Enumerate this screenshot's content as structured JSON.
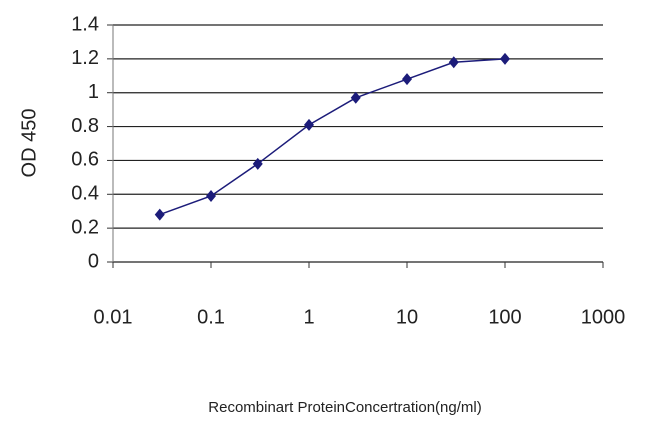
{
  "chart_data": {
    "type": "line",
    "x_label": "Recombinart ProteinConcertration(ng/ml)",
    "y_label": "OD 450",
    "x": [
      0.03,
      0.1,
      0.3,
      1,
      3,
      10,
      30,
      100
    ],
    "series": [
      {
        "color": "#1c1c7a",
        "values": [
          0.28,
          0.39,
          0.58,
          0.81,
          0.97,
          1.08,
          1.18,
          1.2
        ]
      }
    ],
    "xlim": [
      0.01,
      1000
    ],
    "xticks": [
      0.01,
      0.1,
      1,
      10,
      100,
      1000
    ],
    "x_log": true,
    "ylim": [
      0,
      1.4
    ],
    "yticks": [
      0,
      0.2,
      0.4,
      0.6,
      0.8,
      1,
      1.2,
      1.4
    ],
    "grid": true
  }
}
